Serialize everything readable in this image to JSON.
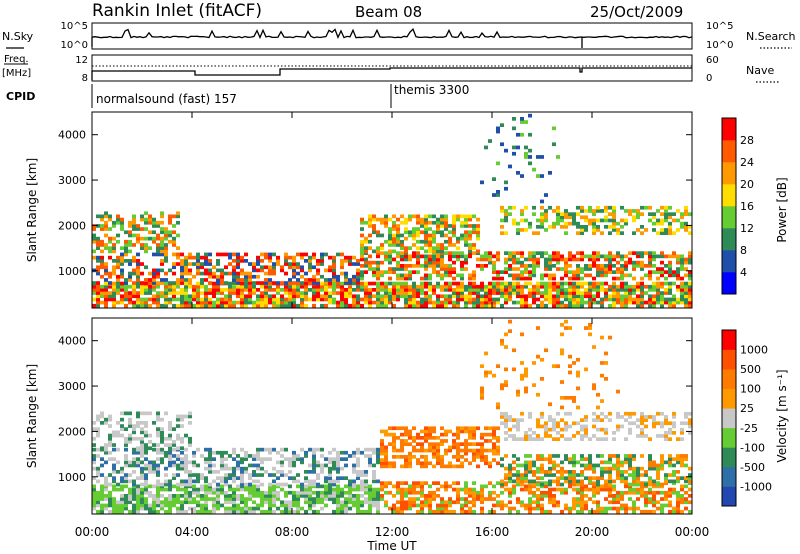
{
  "header": {
    "station": "Rankin Inlet (fitACF)",
    "beam": "Beam 08",
    "date": "25/Oct/2009"
  },
  "panels": {
    "noise": {
      "left_label": "N.Sky",
      "right_label": "N.Search",
      "ticks_left": [
        "10^5",
        "10^0"
      ],
      "ticks_right": [
        "10^5",
        "10^0"
      ]
    },
    "freq": {
      "left_label_1": "Freq.",
      "left_label_2": "[MHz]",
      "right_label": "Nave",
      "ticks_left": [
        "12",
        "8"
      ],
      "ticks_right": [
        "60",
        "0"
      ]
    },
    "cpid": {
      "label": "CPID",
      "program_1": "normalsound (fast) 157",
      "program_2": "themis 3300"
    }
  },
  "chart_data": [
    {
      "type": "heatmap",
      "name": "power",
      "ylabel": "Slant Range [km]",
      "yticks": [
        "4000",
        "3000",
        "2000",
        "1000"
      ],
      "ylim": [
        180,
        4500
      ],
      "colorbar": {
        "label": "Power [dB]",
        "ticks": [
          "28",
          "24",
          "20",
          "16",
          "12",
          "8",
          "4"
        ],
        "colors": [
          "#0000ff",
          "#1f4fa8",
          "#2e8b57",
          "#66cc33",
          "#ffdd00",
          "#ff9900",
          "#ff5a00",
          "#ff0000"
        ]
      }
    },
    {
      "type": "heatmap",
      "name": "velocity",
      "ylabel": "Slant Range [km]",
      "yticks": [
        "4000",
        "3000",
        "2000",
        "1000"
      ],
      "ylim": [
        180,
        4500
      ],
      "colorbar": {
        "label": "Velocity [m s⁻¹]",
        "ticks": [
          "1000",
          "500",
          "100",
          "25",
          "-25",
          "-100",
          "-500",
          "-1000"
        ],
        "colors": [
          "#2048b0",
          "#2f6fa8",
          "#2e8b57",
          "#66cc33",
          "#c8c8c8",
          "#ff9900",
          "#ff7a00",
          "#ff5000",
          "#ff0000"
        ]
      }
    }
  ],
  "xaxis": {
    "label": "Time UT",
    "ticks": [
      "00:00",
      "04:00",
      "08:00",
      "12:00",
      "16:00",
      "20:00",
      "00:00"
    ]
  }
}
